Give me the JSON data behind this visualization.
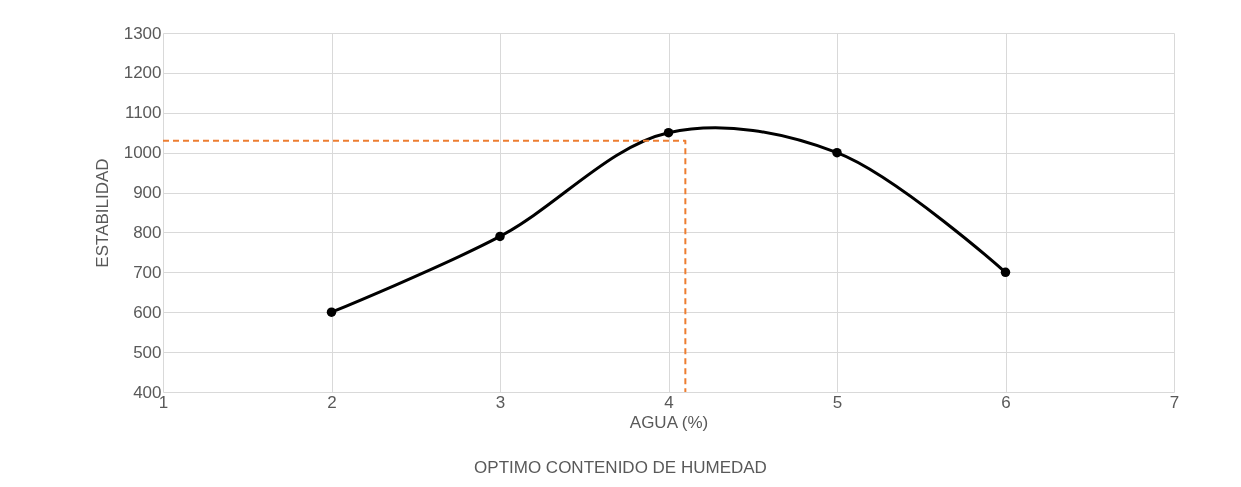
{
  "chart_data": {
    "type": "line",
    "ylabel": "ESTABILIDAD",
    "xlabel": "AGUA (%)",
    "annotations": [
      "OPTIMO CONTENIDO DE HUMEDAD"
    ],
    "xlim": [
      1,
      7
    ],
    "xticks": [
      1,
      2,
      3,
      4,
      5,
      6,
      7
    ],
    "ylim": [
      400,
      1300
    ],
    "yticks": [
      400,
      500,
      600,
      700,
      800,
      900,
      1000,
      1100,
      1200,
      1300
    ],
    "grid": true,
    "series": [
      {
        "color": "#000000",
        "x": [
          2,
          3,
          4,
          5,
          6
        ],
        "values": [
          600,
          790,
          1050,
          1000,
          700
        ],
        "marker": "circle",
        "line_style": "solid"
      },
      {
        "color": "#ed7d31",
        "x": [
          1,
          4.1,
          4.1
        ],
        "values": [
          1030,
          1030,
          400
        ],
        "marker": "none",
        "line_style": "dashed"
      }
    ]
  }
}
